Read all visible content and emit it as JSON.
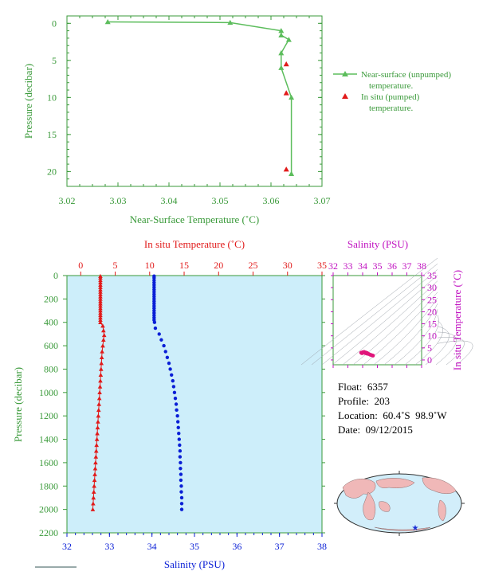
{
  "chart_data": [
    {
      "type": "line",
      "xlabel": "Near-Surface Temperature (˚C)",
      "ylabel": "Pressure (decibar)",
      "xlim": [
        3.02,
        3.07
      ],
      "ylim": [
        22,
        -1
      ],
      "x_ticks": [
        "3.02",
        "3.03",
        "3.04",
        "3.05",
        "3.06",
        "3.07"
      ],
      "y_ticks": [
        "0",
        "5",
        "10",
        "15",
        "20"
      ],
      "legend_position": "right",
      "series": [
        {
          "name": "Near-surface (unpumped) temperature.",
          "color": "#5cbd5c",
          "marker": "triangle",
          "points": [
            [
              3.028,
              -0.2
            ],
            [
              3.052,
              -0.1
            ],
            [
              3.062,
              1.0
            ],
            [
              3.062,
              1.6
            ],
            [
              3.0635,
              2.2
            ],
            [
              3.062,
              4.0
            ],
            [
              3.062,
              6.0
            ],
            [
              3.064,
              10.0
            ],
            [
              3.064,
              20.3
            ]
          ]
        },
        {
          "name": "In situ (pumped) temperature.",
          "color": "#e11a1a",
          "marker": "triangle",
          "points": [
            [
              3.063,
              5.5
            ],
            [
              3.063,
              9.4
            ],
            [
              3.063,
              19.7
            ]
          ]
        }
      ]
    },
    {
      "type": "scatter",
      "xlabel_top": "In situ Temperature (˚C)",
      "xlabel_bottom": "Salinity (PSU)",
      "ylabel": "Pressure (decibar)",
      "temp_xlim": [
        -2,
        35
      ],
      "sal_xlim": [
        32,
        38
      ],
      "ylim": [
        2200,
        0
      ],
      "temp_ticks": [
        "0",
        "5",
        "10",
        "15",
        "20",
        "25",
        "30",
        "35"
      ],
      "sal_ticks": [
        "32",
        "33",
        "34",
        "35",
        "36",
        "37",
        "38"
      ],
      "y_ticks": [
        "0",
        "200",
        "400",
        "600",
        "800",
        "1000",
        "1200",
        "1400",
        "1600",
        "1800",
        "2000",
        "2200"
      ],
      "background": "#cdeefa",
      "temperature": {
        "color": "#e11a1a",
        "points": [
          [
            2.85,
            5
          ],
          [
            2.85,
            20
          ],
          [
            2.85,
            40
          ],
          [
            2.85,
            60
          ],
          [
            2.85,
            80
          ],
          [
            2.85,
            100
          ],
          [
            2.85,
            120
          ],
          [
            2.85,
            140
          ],
          [
            2.85,
            160
          ],
          [
            2.85,
            180
          ],
          [
            2.85,
            200
          ],
          [
            2.85,
            220
          ],
          [
            2.85,
            240
          ],
          [
            2.85,
            260
          ],
          [
            2.85,
            280
          ],
          [
            2.85,
            300
          ],
          [
            2.85,
            320
          ],
          [
            2.85,
            340
          ],
          [
            2.85,
            360
          ],
          [
            2.85,
            380
          ],
          [
            2.85,
            400
          ],
          [
            3.2,
            430
          ],
          [
            3.3,
            470
          ],
          [
            3.4,
            510
          ],
          [
            3.3,
            550
          ],
          [
            3.2,
            600
          ],
          [
            3.1,
            650
          ],
          [
            3.05,
            700
          ],
          [
            3.0,
            750
          ],
          [
            2.95,
            800
          ],
          [
            2.9,
            850
          ],
          [
            2.85,
            900
          ],
          [
            2.8,
            950
          ],
          [
            2.75,
            1000
          ],
          [
            2.7,
            1050
          ],
          [
            2.65,
            1100
          ],
          [
            2.6,
            1150
          ],
          [
            2.55,
            1200
          ],
          [
            2.5,
            1250
          ],
          [
            2.45,
            1300
          ],
          [
            2.4,
            1350
          ],
          [
            2.35,
            1400
          ],
          [
            2.3,
            1450
          ],
          [
            2.25,
            1500
          ],
          [
            2.2,
            1550
          ],
          [
            2.15,
            1600
          ],
          [
            2.1,
            1650
          ],
          [
            2.05,
            1700
          ],
          [
            2.0,
            1750
          ],
          [
            1.95,
            1800
          ],
          [
            1.9,
            1850
          ],
          [
            1.85,
            1900
          ],
          [
            1.8,
            1950
          ],
          [
            1.75,
            2000
          ]
        ]
      },
      "salinity": {
        "color": "#0a1fd6",
        "points": [
          [
            34.05,
            5
          ],
          [
            34.05,
            20
          ],
          [
            34.05,
            40
          ],
          [
            34.05,
            60
          ],
          [
            34.05,
            80
          ],
          [
            34.05,
            100
          ],
          [
            34.05,
            120
          ],
          [
            34.05,
            140
          ],
          [
            34.05,
            160
          ],
          [
            34.05,
            180
          ],
          [
            34.05,
            200
          ],
          [
            34.05,
            220
          ],
          [
            34.05,
            240
          ],
          [
            34.05,
            260
          ],
          [
            34.05,
            280
          ],
          [
            34.05,
            300
          ],
          [
            34.05,
            320
          ],
          [
            34.05,
            340
          ],
          [
            34.05,
            360
          ],
          [
            34.05,
            380
          ],
          [
            34.06,
            400
          ],
          [
            34.08,
            450
          ],
          [
            34.17,
            500
          ],
          [
            34.22,
            550
          ],
          [
            34.28,
            600
          ],
          [
            34.32,
            650
          ],
          [
            34.36,
            700
          ],
          [
            34.4,
            750
          ],
          [
            34.43,
            800
          ],
          [
            34.46,
            850
          ],
          [
            34.49,
            900
          ],
          [
            34.51,
            950
          ],
          [
            34.53,
            1000
          ],
          [
            34.55,
            1050
          ],
          [
            34.57,
            1100
          ],
          [
            34.58,
            1150
          ],
          [
            34.6,
            1200
          ],
          [
            34.61,
            1250
          ],
          [
            34.62,
            1300
          ],
          [
            34.63,
            1350
          ],
          [
            34.64,
            1400
          ],
          [
            34.65,
            1450
          ],
          [
            34.66,
            1500
          ],
          [
            34.66,
            1550
          ],
          [
            34.67,
            1600
          ],
          [
            34.67,
            1650
          ],
          [
            34.68,
            1700
          ],
          [
            34.68,
            1750
          ],
          [
            34.69,
            1800
          ],
          [
            34.69,
            1850
          ],
          [
            34.7,
            1900
          ],
          [
            34.7,
            1950
          ],
          [
            34.7,
            2000
          ]
        ]
      }
    },
    {
      "type": "scatter",
      "xlabel": "Salinity (PSU)",
      "ylabel": "In situ Temperature (˚C)",
      "xlim": [
        32,
        38
      ],
      "ylim": [
        -2,
        35
      ],
      "x_ticks": [
        "32",
        "33",
        "34",
        "35",
        "36",
        "37",
        "38"
      ],
      "y_ticks": [
        "0",
        "5",
        "10",
        "15",
        "20",
        "25",
        "30",
        "35"
      ],
      "color": "#e0157a",
      "points": [
        [
          33.9,
          3.0
        ],
        [
          34.0,
          3.2
        ],
        [
          34.1,
          3.3
        ],
        [
          34.2,
          3.1
        ],
        [
          34.3,
          2.9
        ],
        [
          34.4,
          2.5
        ],
        [
          34.5,
          2.2
        ],
        [
          34.6,
          2.0
        ],
        [
          34.7,
          1.8
        ],
        [
          34.3,
          2.6
        ],
        [
          34.2,
          2.8
        ],
        [
          34.0,
          2.9
        ],
        [
          33.95,
          2.8
        ]
      ]
    }
  ],
  "info": {
    "float_label": "Float:",
    "float_value": "6357",
    "profile_label": "Profile:",
    "profile_value": "203",
    "location_label": "Location:",
    "location_value": "60.4˚S  98.9˚W",
    "date_label": "Date:",
    "date_value": "09/12/2015"
  },
  "map": {
    "ocean_color": "#d2eefa",
    "land_color": "#f0b8b8",
    "marker_color": "#1a2fd6"
  }
}
